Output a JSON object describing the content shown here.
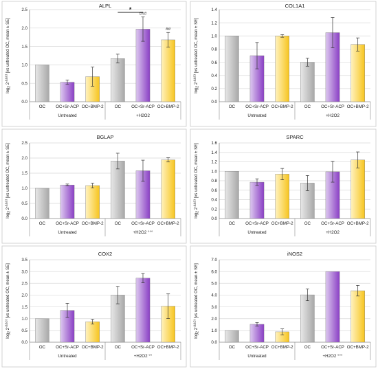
{
  "colors": {
    "oc": "#a8a8a8",
    "sr_acp": "#8a3fc4",
    "bmp2": "#f7c51e",
    "axis": "#888888",
    "grid": "#d9d9d9",
    "text": "#222222"
  },
  "chart_data": [
    {
      "type": "bar",
      "title": "ALPL",
      "ylabel": "log2 2^-ΔΔCt [vs untreated OC, mean ± SE]",
      "ylim": [
        0,
        2.5
      ],
      "yticks": [
        "0.0",
        "0.5",
        "1.0",
        "1.5",
        "2.0",
        "2.5"
      ],
      "grid": true,
      "categories": [
        "OC",
        "OC+Sr-ACP",
        "OC+BMP-2",
        "OC",
        "OC+Sr-ACP",
        "OC+BMP-2"
      ],
      "groups": [
        {
          "label": "Untreated"
        },
        {
          "label": "+H2O2"
        }
      ],
      "values": [
        1.0,
        0.53,
        0.68,
        1.17,
        1.97,
        1.68
      ],
      "errors": [
        0,
        0.06,
        0.26,
        0.12,
        0.33,
        0.2
      ],
      "bar_annotations": [
        "",
        "",
        "",
        "",
        "###",
        "##"
      ],
      "significance": [
        {
          "label": "*",
          "from": 3,
          "to": 4
        }
      ]
    },
    {
      "type": "bar",
      "title": "COL1A1",
      "ylabel": "log2 2^-ΔΔCt [vs untreated OC, mean ± SE]",
      "ylim": [
        0,
        1.4
      ],
      "yticks": [
        "0.0",
        "0.2",
        "0.4",
        "0.6",
        "0.8",
        "1.0",
        "1.2",
        "1.4"
      ],
      "grid": true,
      "categories": [
        "OC",
        "OC+Sr-ACP",
        "OC+BMP-2",
        "OC",
        "OC+Sr-ACP",
        "OC+BMP-2"
      ],
      "groups": [
        {
          "label": "Untreated"
        },
        {
          "label": "+H2O2"
        }
      ],
      "values": [
        1.0,
        0.7,
        1.0,
        0.6,
        1.05,
        0.87
      ],
      "errors": [
        0,
        0.2,
        0.02,
        0.06,
        0.23,
        0.1
      ],
      "bar_annotations": [
        "",
        "",
        "",
        "",
        "",
        ""
      ],
      "significance": []
    },
    {
      "type": "bar",
      "title": "BGLAP",
      "ylabel": "log2 2^-ΔΔCt [vs untreated OC, mean ± SE]",
      "ylim": [
        0,
        2.5
      ],
      "yticks": [
        "0.0",
        "0.5",
        "1.0",
        "1.5",
        "2.0",
        "2.5"
      ],
      "grid": true,
      "categories": [
        "OC",
        "OC+Sr-ACP",
        "OC+BMP-2",
        "OC",
        "OC+Sr-ACP",
        "OC+BMP-2"
      ],
      "groups": [
        {
          "label": "Untreated"
        },
        {
          "label": "+H2O2 °°°"
        }
      ],
      "values": [
        1.0,
        1.11,
        1.09,
        1.9,
        1.58,
        1.94
      ],
      "errors": [
        0,
        0.03,
        0.08,
        0.26,
        0.35,
        0.07
      ],
      "bar_annotations": [
        "",
        "",
        "",
        "",
        "",
        ""
      ],
      "significance": []
    },
    {
      "type": "bar",
      "title": "SPARC",
      "ylabel": "log2 2^-ΔΔCt [vs untreated OC, mean ± SE]",
      "ylim": [
        0,
        1.6
      ],
      "yticks": [
        "0.0",
        "0.2",
        "0.4",
        "0.6",
        "0.8",
        "1.0",
        "1.2",
        "1.4",
        "1.6"
      ],
      "grid": true,
      "categories": [
        "OC",
        "OC+Sr-ACP",
        "OC+BMP-2",
        "OC",
        "OC+Sr-ACP",
        "OC+BMP-2"
      ],
      "groups": [
        {
          "label": "Untreated"
        },
        {
          "label": "+H2O2"
        }
      ],
      "values": [
        1.0,
        0.77,
        0.94,
        0.75,
        0.99,
        1.24
      ],
      "errors": [
        0,
        0.07,
        0.12,
        0.16,
        0.22,
        0.17
      ],
      "bar_annotations": [
        "",
        "",
        "",
        "",
        "",
        ""
      ],
      "significance": []
    },
    {
      "type": "bar",
      "title": "COX2",
      "ylabel": "log2 2^-ΔΔCt [vs untreated OC, mean ± SE]",
      "ylim": [
        0,
        3.5
      ],
      "yticks": [
        "0.0",
        "0.5",
        "1.0",
        "1.5",
        "2.0",
        "2.5",
        "3.0",
        "3.5"
      ],
      "grid": true,
      "categories": [
        "OC",
        "OC+Sr-ACP",
        "OC+BMP-2",
        "OC",
        "OC+Sr-ACP",
        "OC+BMP-2"
      ],
      "groups": [
        {
          "label": "Untreated"
        },
        {
          "label": "+H2O2 °°"
        }
      ],
      "values": [
        1.0,
        1.35,
        0.87,
        2.0,
        2.72,
        1.53
      ],
      "errors": [
        0,
        0.3,
        0.1,
        0.37,
        0.2,
        0.52
      ],
      "bar_annotations": [
        "",
        "",
        "",
        "",
        "",
        ""
      ],
      "significance": []
    },
    {
      "type": "bar",
      "title": "iNOS2",
      "ylabel": "log2 2^-ΔΔCt [vs untreated OC, mean ± SE]",
      "ylim": [
        0,
        7
      ],
      "yticks": [
        "0.0",
        "1.0",
        "2.0",
        "3.0",
        "4.0",
        "5.0",
        "6.0",
        "7.0"
      ],
      "grid": true,
      "categories": [
        "OC",
        "OC+Sr-ACP",
        "OC+BMP-2",
        "OC",
        "OC+Sr-ACP",
        "OC+BMP-2"
      ],
      "groups": [
        {
          "label": "Untreated"
        },
        {
          "label": "+H2O2 °°°"
        }
      ],
      "values": [
        1.0,
        1.52,
        0.88,
        4.02,
        6.0,
        4.37
      ],
      "errors": [
        0,
        0.15,
        0.25,
        0.5,
        0,
        0.45
      ],
      "bar_annotations": [
        "",
        "",
        "",
        "",
        "",
        ""
      ],
      "significance": []
    }
  ]
}
